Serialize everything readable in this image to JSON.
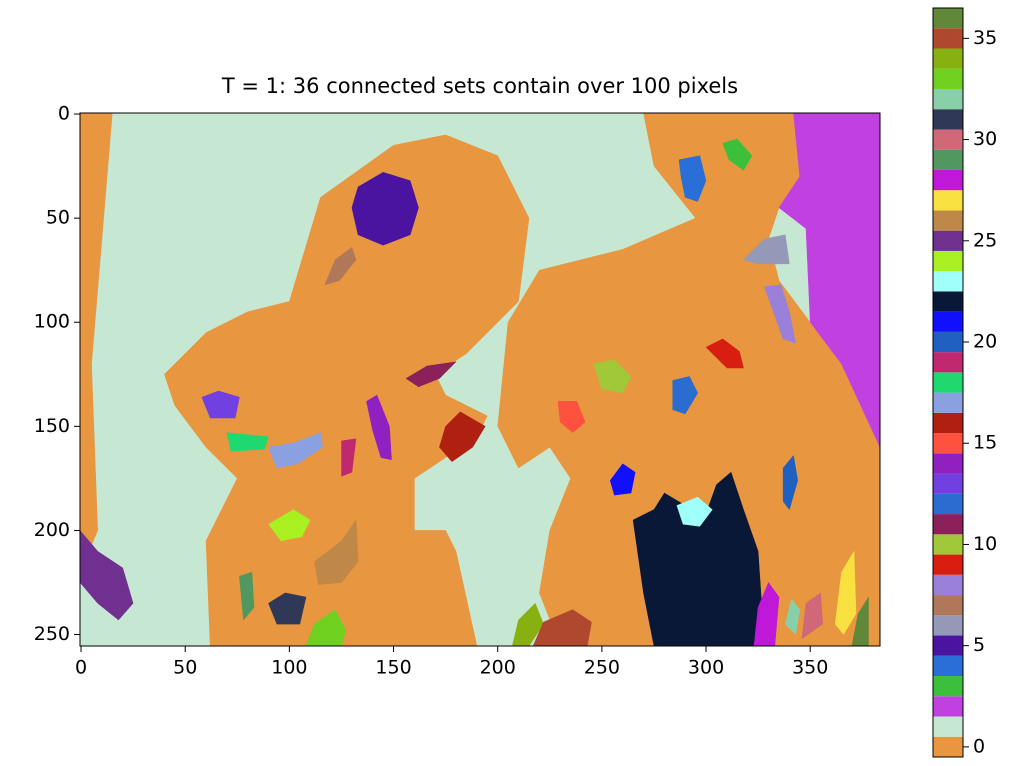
{
  "chart_data": {
    "type": "image",
    "title": "T = 1: 36 connected sets contain over 100 pixels",
    "xlim": [
      -0.5,
      383.5
    ],
    "ylim": [
      -0.5,
      255.5
    ],
    "xticks": [
      0,
      50,
      100,
      150,
      200,
      250,
      300,
      350
    ],
    "yticks": [
      0,
      50,
      100,
      150,
      200,
      250
    ],
    "colorbar": {
      "clim": [
        -0.5,
        36.5
      ],
      "ticks": [
        0,
        5,
        10,
        15,
        20,
        25,
        30,
        35
      ],
      "colors": [
        "#e8963f",
        "#c6e8d3",
        "#c040e0",
        "#3cc03c",
        "#2a6fd8",
        "#4a14a0",
        "#9499b8",
        "#b07858",
        "#9a80d8",
        "#d81e10",
        "#a0c838",
        "#8c2058",
        "#2b6cd0",
        "#7040e0",
        "#9020c0",
        "#ff5040",
        "#b02010",
        "#8aa0e0",
        "#20d870",
        "#c02870",
        "#2060c0",
        "#1010ff",
        "#0a1838",
        "#a0fff8",
        "#a8f020",
        "#703090",
        "#c08848",
        "#f8e040",
        "#c018d8",
        "#509860",
        "#d06878",
        "#303858",
        "#88d0a8",
        "#70d020",
        "#88b010",
        "#b04830",
        "#608838"
      ]
    },
    "regions": [
      {
        "label": 1,
        "points": [
          [
            -0.5,
            -0.5
          ],
          [
            383.5,
            -0.5
          ],
          [
            383.5,
            255.5
          ],
          [
            -0.5,
            255.5
          ]
        ]
      },
      {
        "label": 0,
        "points": [
          [
            -0.5,
            -0.5
          ],
          [
            15,
            -0.5
          ],
          [
            10,
            60
          ],
          [
            5,
            120
          ],
          [
            8,
            200
          ],
          [
            -0.5,
            220
          ]
        ]
      },
      {
        "label": 0,
        "points": [
          [
            100,
            90
          ],
          [
            115,
            40
          ],
          [
            150,
            15
          ],
          [
            175,
            10
          ],
          [
            200,
            20
          ],
          [
            215,
            50
          ],
          [
            210,
            90
          ],
          [
            200,
            100
          ],
          [
            185,
            115
          ],
          [
            170,
            125
          ],
          [
            175,
            135
          ],
          [
            195,
            145
          ],
          [
            190,
            155
          ],
          [
            175,
            165
          ],
          [
            160,
            175
          ],
          [
            160,
            200
          ],
          [
            175,
            200
          ],
          [
            180,
            210
          ],
          [
            190,
            255.5
          ],
          [
            62,
            255.5
          ],
          [
            60,
            205
          ],
          [
            75,
            175
          ],
          [
            60,
            160
          ],
          [
            45,
            140
          ],
          [
            40,
            125
          ],
          [
            60,
            105
          ],
          [
            80,
            95
          ]
        ]
      },
      {
        "label": 0,
        "points": [
          [
            200,
            150
          ],
          [
            205,
            100
          ],
          [
            220,
            75
          ],
          [
            260,
            65
          ],
          [
            295,
            50
          ],
          [
            275,
            25
          ],
          [
            270,
            -0.5
          ],
          [
            342,
            -0.5
          ],
          [
            345,
            30
          ],
          [
            335,
            45
          ],
          [
            330,
            60
          ],
          [
            335,
            80
          ],
          [
            350,
            100
          ],
          [
            365,
            120
          ],
          [
            383.5,
            160
          ],
          [
            383.5,
            255.5
          ],
          [
            230,
            255.5
          ],
          [
            220,
            230
          ],
          [
            225,
            200
          ],
          [
            235,
            175
          ],
          [
            225,
            160
          ],
          [
            210,
            170
          ]
        ]
      },
      {
        "label": 2,
        "points": [
          [
            342,
            -0.5
          ],
          [
            383.5,
            -0.5
          ],
          [
            383.5,
            160
          ],
          [
            365,
            120
          ],
          [
            350,
            100
          ],
          [
            348,
            55
          ],
          [
            335,
            45
          ],
          [
            345,
            30
          ]
        ]
      },
      {
        "label": 5,
        "points": [
          [
            133,
            35
          ],
          [
            145,
            28
          ],
          [
            158,
            32
          ],
          [
            162,
            45
          ],
          [
            158,
            58
          ],
          [
            145,
            63
          ],
          [
            133,
            58
          ],
          [
            130,
            45
          ]
        ]
      },
      {
        "label": 7,
        "points": [
          [
            117,
            82
          ],
          [
            122,
            70
          ],
          [
            130,
            64
          ],
          [
            132,
            70
          ],
          [
            124,
            80
          ]
        ]
      },
      {
        "label": 4,
        "points": [
          [
            287,
            22
          ],
          [
            297,
            20
          ],
          [
            300,
            32
          ],
          [
            296,
            42
          ],
          [
            290,
            40
          ],
          [
            288,
            30
          ]
        ]
      },
      {
        "label": 3,
        "points": [
          [
            308,
            14
          ],
          [
            315,
            12
          ],
          [
            322,
            20
          ],
          [
            318,
            27
          ],
          [
            311,
            22
          ]
        ]
      },
      {
        "label": 6,
        "points": [
          [
            318,
            70
          ],
          [
            328,
            60
          ],
          [
            338,
            58
          ],
          [
            340,
            72
          ],
          [
            325,
            72
          ]
        ]
      },
      {
        "label": 8,
        "points": [
          [
            328,
            83
          ],
          [
            336,
            82
          ],
          [
            340,
            95
          ],
          [
            343,
            110
          ],
          [
            337,
            108
          ]
        ]
      },
      {
        "label": 9,
        "points": [
          [
            300,
            112
          ],
          [
            308,
            108
          ],
          [
            316,
            114
          ],
          [
            318,
            122
          ],
          [
            310,
            122
          ]
        ]
      },
      {
        "label": 10,
        "points": [
          [
            246,
            120
          ],
          [
            256,
            118
          ],
          [
            264,
            126
          ],
          [
            260,
            134
          ],
          [
            250,
            132
          ]
        ]
      },
      {
        "label": 12,
        "points": [
          [
            284,
            128
          ],
          [
            292,
            126
          ],
          [
            296,
            134
          ],
          [
            290,
            144
          ],
          [
            284,
            142
          ]
        ]
      },
      {
        "label": 15,
        "points": [
          [
            229,
            138
          ],
          [
            238,
            138
          ],
          [
            242,
            148
          ],
          [
            236,
            153
          ],
          [
            230,
            148
          ]
        ]
      },
      {
        "label": 13,
        "points": [
          [
            58,
            136
          ],
          [
            66,
            133
          ],
          [
            76,
            136
          ],
          [
            74,
            146
          ],
          [
            62,
            146
          ]
        ]
      },
      {
        "label": 14,
        "points": [
          [
            137,
            138
          ],
          [
            142,
            135
          ],
          [
            148,
            150
          ],
          [
            149,
            166
          ],
          [
            144,
            165
          ],
          [
            140,
            152
          ]
        ]
      },
      {
        "label": 11,
        "points": [
          [
            156,
            127
          ],
          [
            166,
            121
          ],
          [
            180,
            119
          ],
          [
            172,
            127
          ],
          [
            162,
            131
          ]
        ]
      },
      {
        "label": 16,
        "points": [
          [
            175,
            150
          ],
          [
            182,
            143
          ],
          [
            194,
            150
          ],
          [
            188,
            160
          ],
          [
            178,
            167
          ],
          [
            172,
            160
          ]
        ]
      },
      {
        "label": 18,
        "points": [
          [
            70,
            153
          ],
          [
            80,
            154
          ],
          [
            90,
            155
          ],
          [
            88,
            161
          ],
          [
            72,
            162
          ]
        ]
      },
      {
        "label": 17,
        "points": [
          [
            90,
            160
          ],
          [
            102,
            158
          ],
          [
            115,
            153
          ],
          [
            116,
            160
          ],
          [
            104,
            168
          ],
          [
            94,
            170
          ]
        ]
      },
      {
        "label": 19,
        "points": [
          [
            125,
            157
          ],
          [
            132,
            156
          ],
          [
            130,
            172
          ],
          [
            125,
            174
          ]
        ]
      },
      {
        "label": 21,
        "points": [
          [
            254,
            176
          ],
          [
            260,
            168
          ],
          [
            266,
            172
          ],
          [
            264,
            182
          ],
          [
            256,
            183
          ]
        ]
      },
      {
        "label": 20,
        "points": [
          [
            337,
            170
          ],
          [
            342,
            164
          ],
          [
            344,
            176
          ],
          [
            340,
            190
          ],
          [
            337,
            186
          ]
        ]
      },
      {
        "label": 22,
        "points": [
          [
            265,
            195
          ],
          [
            275,
            190
          ],
          [
            280,
            182
          ],
          [
            290,
            188
          ],
          [
            300,
            192
          ],
          [
            305,
            178
          ],
          [
            312,
            172
          ],
          [
            318,
            190
          ],
          [
            325,
            210
          ],
          [
            328,
            255.5
          ],
          [
            275,
            255.5
          ],
          [
            270,
            230
          ]
        ]
      },
      {
        "label": 23,
        "points": [
          [
            286,
            188
          ],
          [
            296,
            184
          ],
          [
            303,
            190
          ],
          [
            297,
            198
          ],
          [
            289,
            197
          ]
        ]
      },
      {
        "label": 24,
        "points": [
          [
            90,
            197
          ],
          [
            102,
            190
          ],
          [
            110,
            195
          ],
          [
            106,
            203
          ],
          [
            96,
            205
          ]
        ]
      },
      {
        "label": 26,
        "points": [
          [
            112,
            215
          ],
          [
            125,
            205
          ],
          [
            132,
            195
          ],
          [
            133,
            215
          ],
          [
            125,
            225
          ],
          [
            114,
            226
          ]
        ]
      },
      {
        "label": 25,
        "points": [
          [
            -0.5,
            200
          ],
          [
            8,
            210
          ],
          [
            20,
            218
          ],
          [
            25,
            235
          ],
          [
            18,
            243
          ],
          [
            8,
            235
          ],
          [
            -0.5,
            225
          ]
        ]
      },
      {
        "label": 29,
        "points": [
          [
            76,
            222
          ],
          [
            82,
            220
          ],
          [
            83,
            237
          ],
          [
            78,
            243
          ]
        ]
      },
      {
        "label": 31,
        "points": [
          [
            90,
            235
          ],
          [
            98,
            230
          ],
          [
            108,
            232
          ],
          [
            105,
            245
          ],
          [
            94,
            245
          ]
        ]
      },
      {
        "label": 33,
        "points": [
          [
            108,
            255.5
          ],
          [
            112,
            245
          ],
          [
            122,
            238
          ],
          [
            127,
            248
          ],
          [
            125,
            255.5
          ]
        ]
      },
      {
        "label": 34,
        "points": [
          [
            207,
            255.5
          ],
          [
            210,
            243
          ],
          [
            218,
            235
          ],
          [
            222,
            245
          ],
          [
            215,
            255.5
          ]
        ]
      },
      {
        "label": 35,
        "points": [
          [
            217,
            255.5
          ],
          [
            222,
            244
          ],
          [
            236,
            238
          ],
          [
            245,
            244
          ],
          [
            243,
            255.5
          ]
        ]
      },
      {
        "label": 28,
        "points": [
          [
            323,
            255.5
          ],
          [
            325,
            237
          ],
          [
            330,
            225
          ],
          [
            335,
            232
          ],
          [
            333,
            255.5
          ]
        ]
      },
      {
        "label": 32,
        "points": [
          [
            338,
            245
          ],
          [
            341,
            233
          ],
          [
            345,
            238
          ],
          [
            343,
            250
          ]
        ]
      },
      {
        "label": 30,
        "points": [
          [
            346,
            252
          ],
          [
            348,
            235
          ],
          [
            355,
            230
          ],
          [
            356,
            245
          ]
        ]
      },
      {
        "label": 27,
        "points": [
          [
            362,
            245
          ],
          [
            365,
            220
          ],
          [
            371,
            210
          ],
          [
            372,
            240
          ],
          [
            366,
            250
          ]
        ]
      },
      {
        "label": 36,
        "points": [
          [
            370,
            255.5
          ],
          [
            373,
            240
          ],
          [
            378,
            232
          ],
          [
            378,
            255.5
          ]
        ]
      }
    ]
  }
}
